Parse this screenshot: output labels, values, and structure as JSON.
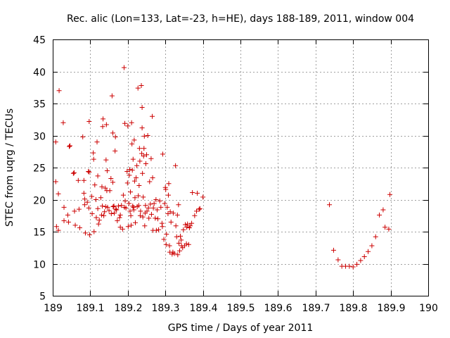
{
  "chart_data": {
    "type": "scatter",
    "title": "Rec. alic (Lon=133, Lat=-23, h=HE), days 188-189, 2011, window 004",
    "xlabel": "GPS time / Days of year 2011",
    "ylabel": "STEC from uqrg / TECUs",
    "xlim": [
      189,
      190
    ],
    "ylim": [
      5,
      45
    ],
    "xticks": [
      189,
      189.1,
      189.2,
      189.3,
      189.4,
      189.5,
      189.6,
      189.7,
      189.8,
      189.9,
      190
    ],
    "xtick_labels": [
      "189",
      "189.1",
      "189.2",
      "189.3",
      "189.4",
      "189.5",
      "189.6",
      "189.7",
      "189.8",
      "189.9",
      "190"
    ],
    "yticks": [
      5,
      10,
      15,
      20,
      25,
      30,
      35,
      40,
      45
    ],
    "ytick_labels": [
      "5",
      "10",
      "15",
      "20",
      "25",
      "30",
      "35",
      "40",
      "45"
    ],
    "grid": true,
    "marker": "plus",
    "color": "#cc0000",
    "series": [
      {
        "name": "STEC",
        "points": [
          [
            189.008,
            29.0
          ],
          [
            189.008,
            22.8
          ],
          [
            189.01,
            15.8
          ],
          [
            189.015,
            20.9
          ],
          [
            189.015,
            15.2
          ],
          [
            189.017,
            37.0
          ],
          [
            189.028,
            32.0
          ],
          [
            189.03,
            18.8
          ],
          [
            189.03,
            16.7
          ],
          [
            189.04,
            17.6
          ],
          [
            189.042,
            16.5
          ],
          [
            189.044,
            28.3
          ],
          [
            189.046,
            28.4
          ],
          [
            189.055,
            24.1
          ],
          [
            189.057,
            24.2
          ],
          [
            189.058,
            18.2
          ],
          [
            189.06,
            16.0
          ],
          [
            189.068,
            23.0
          ],
          [
            189.07,
            18.5
          ],
          [
            189.072,
            15.6
          ],
          [
            189.08,
            29.8
          ],
          [
            189.083,
            23.0
          ],
          [
            189.083,
            21.0
          ],
          [
            189.085,
            20.1
          ],
          [
            189.085,
            19.2
          ],
          [
            189.087,
            14.8
          ],
          [
            189.092,
            19.6
          ],
          [
            189.095,
            24.4
          ],
          [
            189.096,
            18.7
          ],
          [
            189.097,
            24.3
          ],
          [
            189.097,
            32.2
          ],
          [
            189.098,
            14.5
          ],
          [
            189.104,
            20.5
          ],
          [
            189.105,
            17.8
          ],
          [
            189.108,
            27.3
          ],
          [
            189.109,
            26.3
          ],
          [
            189.11,
            15.0
          ],
          [
            189.112,
            22.3
          ],
          [
            189.115,
            20.0
          ],
          [
            189.116,
            17.2
          ],
          [
            189.118,
            29.0
          ],
          [
            189.12,
            18.6
          ],
          [
            189.12,
            23.7
          ],
          [
            189.122,
            16.2
          ],
          [
            189.124,
            16.8
          ],
          [
            189.128,
            20.3
          ],
          [
            189.13,
            17.6
          ],
          [
            189.131,
            22.0
          ],
          [
            189.132,
            19.0
          ],
          [
            189.133,
            31.4
          ],
          [
            189.134,
            32.6
          ],
          [
            189.136,
            17.5
          ],
          [
            189.138,
            18.1
          ],
          [
            189.14,
            21.8
          ],
          [
            189.141,
            18.9
          ],
          [
            189.142,
            26.2
          ],
          [
            189.143,
            31.7
          ],
          [
            189.144,
            21.4
          ],
          [
            189.145,
            24.5
          ],
          [
            189.146,
            18.8
          ],
          [
            189.15,
            18.3
          ],
          [
            189.152,
            21.4
          ],
          [
            189.155,
            23.3
          ],
          [
            189.156,
            17.8
          ],
          [
            189.158,
            36.2
          ],
          [
            189.16,
            30.4
          ],
          [
            189.16,
            22.7
          ],
          [
            189.161,
            18.9
          ],
          [
            189.163,
            19.0
          ],
          [
            189.164,
            17.9
          ],
          [
            189.166,
            27.6
          ],
          [
            189.167,
            29.8
          ],
          [
            189.168,
            18.5
          ],
          [
            189.17,
            18.4
          ],
          [
            189.172,
            16.7
          ],
          [
            189.175,
            19.0
          ],
          [
            189.178,
            17.2
          ],
          [
            189.18,
            15.7
          ],
          [
            189.18,
            17.6
          ],
          [
            189.183,
            19.1
          ],
          [
            189.186,
            15.4
          ],
          [
            189.188,
            20.7
          ],
          [
            189.19,
            40.6
          ],
          [
            189.191,
            18.8
          ],
          [
            189.192,
            31.9
          ],
          [
            189.193,
            19.8
          ],
          [
            189.195,
            18.7
          ],
          [
            189.198,
            24.4
          ],
          [
            189.199,
            22.6
          ],
          [
            189.2,
            31.5
          ],
          [
            189.201,
            15.8
          ],
          [
            189.203,
            19.4
          ],
          [
            189.204,
            23.8
          ],
          [
            189.205,
            24.7
          ],
          [
            189.206,
            18.2
          ],
          [
            189.207,
            21.2
          ],
          [
            189.208,
            17.5
          ],
          [
            189.209,
            16.0
          ],
          [
            189.21,
            32.0
          ],
          [
            189.211,
            28.7
          ],
          [
            189.212,
            24.6
          ],
          [
            189.213,
            19.0
          ],
          [
            189.214,
            26.3
          ],
          [
            189.215,
            18.8
          ],
          [
            189.216,
            18.4
          ],
          [
            189.217,
            29.3
          ],
          [
            189.218,
            22.9
          ],
          [
            189.219,
            20.3
          ],
          [
            189.22,
            16.4
          ],
          [
            189.222,
            23.4
          ],
          [
            189.224,
            25.3
          ],
          [
            189.225,
            18.9
          ],
          [
            189.227,
            37.4
          ],
          [
            189.228,
            20.6
          ],
          [
            189.229,
            19.1
          ],
          [
            189.23,
            22.2
          ],
          [
            189.231,
            28.0
          ],
          [
            189.232,
            26.0
          ],
          [
            189.233,
            17.5
          ],
          [
            189.234,
            18.2
          ],
          [
            189.236,
            37.8
          ],
          [
            189.237,
            27.2
          ],
          [
            189.238,
            34.4
          ],
          [
            189.238,
            31.2
          ],
          [
            189.239,
            24.1
          ],
          [
            189.24,
            17.3
          ],
          [
            189.241,
            20.4
          ],
          [
            189.242,
            26.8
          ],
          [
            189.243,
            28.0
          ],
          [
            189.244,
            29.9
          ],
          [
            189.245,
            15.9
          ],
          [
            189.246,
            17.9
          ],
          [
            189.247,
            19.1
          ],
          [
            189.248,
            25.6
          ],
          [
            189.25,
            27.0
          ],
          [
            189.251,
            18.2
          ],
          [
            189.253,
            30.0
          ],
          [
            189.255,
            18.7
          ],
          [
            189.256,
            17.1
          ],
          [
            189.258,
            22.8
          ],
          [
            189.26,
            19.3
          ],
          [
            189.262,
            26.4
          ],
          [
            189.263,
            17.7
          ],
          [
            189.265,
            33.0
          ],
          [
            189.266,
            23.4
          ],
          [
            189.267,
            15.2
          ],
          [
            189.268,
            18.7
          ],
          [
            189.27,
            19.4
          ],
          [
            189.273,
            17.1
          ],
          [
            189.275,
            20.0
          ],
          [
            189.276,
            15.2
          ],
          [
            189.278,
            18.4
          ],
          [
            189.28,
            17.0
          ],
          [
            189.282,
            15.3
          ],
          [
            189.285,
            19.8
          ],
          [
            189.288,
            18.8
          ],
          [
            189.291,
            16.3
          ],
          [
            189.292,
            15.8
          ],
          [
            189.293,
            27.1
          ],
          [
            189.296,
            13.8
          ],
          [
            189.298,
            19.4
          ],
          [
            189.3,
            21.9
          ],
          [
            189.301,
            21.6
          ],
          [
            189.302,
            13.0
          ],
          [
            189.303,
            14.6
          ],
          [
            189.305,
            18.8
          ],
          [
            189.307,
            17.8
          ],
          [
            189.308,
            20.7
          ],
          [
            189.309,
            22.5
          ],
          [
            189.311,
            12.8
          ],
          [
            189.312,
            11.8
          ],
          [
            189.313,
            18.1
          ],
          [
            189.315,
            16.5
          ],
          [
            189.318,
            11.5
          ],
          [
            189.32,
            11.8
          ],
          [
            189.321,
            17.9
          ],
          [
            189.324,
            11.6
          ],
          [
            189.327,
            25.3
          ],
          [
            189.328,
            15.9
          ],
          [
            189.33,
            14.2
          ],
          [
            189.332,
            17.6
          ],
          [
            189.333,
            11.4
          ],
          [
            189.335,
            19.2
          ],
          [
            189.336,
            13.2
          ],
          [
            189.338,
            12.0
          ],
          [
            189.34,
            14.3
          ],
          [
            189.342,
            13.7
          ],
          [
            189.343,
            12.8
          ],
          [
            189.346,
            12.5
          ],
          [
            189.348,
            15.3
          ],
          [
            189.351,
            12.8
          ],
          [
            189.353,
            16.1
          ],
          [
            189.356,
            13.1
          ],
          [
            189.357,
            15.7
          ],
          [
            189.359,
            16.2
          ],
          [
            189.362,
            13.0
          ],
          [
            189.364,
            15.6
          ],
          [
            189.366,
            15.9
          ],
          [
            189.37,
            16.3
          ],
          [
            189.372,
            21.1
          ],
          [
            189.378,
            17.5
          ],
          [
            189.383,
            18.2
          ],
          [
            189.385,
            21.0
          ],
          [
            189.39,
            18.5
          ],
          [
            189.392,
            18.6
          ],
          [
            189.4,
            20.4
          ],
          [
            189.737,
            19.2
          ],
          [
            189.748,
            12.1
          ],
          [
            189.76,
            10.6
          ],
          [
            189.77,
            9.6
          ],
          [
            189.78,
            9.6
          ],
          [
            189.79,
            9.6
          ],
          [
            189.8,
            9.5
          ],
          [
            189.81,
            9.9
          ],
          [
            189.82,
            10.5
          ],
          [
            189.83,
            11.1
          ],
          [
            189.84,
            11.9
          ],
          [
            189.85,
            12.8
          ],
          [
            189.86,
            14.2
          ],
          [
            189.87,
            17.6
          ],
          [
            189.88,
            18.4
          ],
          [
            189.885,
            15.7
          ],
          [
            189.895,
            15.4
          ],
          [
            189.898,
            20.8
          ]
        ]
      }
    ]
  }
}
